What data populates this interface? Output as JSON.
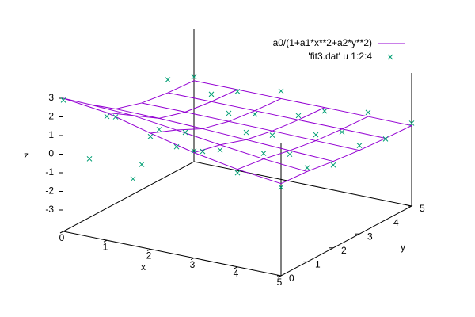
{
  "chart_data": {
    "type": "surface3d",
    "xlabel": "x",
    "ylabel": "y",
    "zlabel": "z",
    "xlim": [
      0,
      5
    ],
    "ylim": [
      0,
      5
    ],
    "zlim": [
      -3,
      3
    ],
    "xticks": [
      0,
      1,
      2,
      3,
      4,
      5
    ],
    "yticks": [
      0,
      1,
      2,
      3,
      4,
      5
    ],
    "zticks": [
      -3,
      -2,
      -1,
      0,
      1,
      2,
      3
    ],
    "legend": "top-right",
    "series": [
      {
        "name": "a0/(1+a1*x**2+a2*y**2)",
        "type": "surface",
        "color": "#9400d3",
        "x": [
          0,
          1,
          2,
          3,
          4,
          5
        ],
        "y": [
          0,
          1,
          2,
          3,
          4,
          5
        ],
        "z": [
          [
            3.0,
            2.7,
            2.08,
            1.51,
            1.09,
            0.8
          ],
          [
            1.92,
            1.8,
            1.5,
            1.18,
            0.9,
            0.7
          ],
          [
            0.93,
            0.9,
            0.82,
            0.71,
            0.6,
            0.5
          ],
          [
            0.5,
            0.49,
            0.46,
            0.43,
            0.38,
            0.34
          ],
          [
            0.3,
            0.3,
            0.29,
            0.27,
            0.26,
            0.24
          ],
          [
            0.2,
            0.2,
            0.19,
            0.19,
            0.18,
            0.17
          ]
        ]
      },
      {
        "name": "'fit3.dat' u 1:2:4",
        "type": "points",
        "color": "#009e73",
        "x": [
          0,
          0,
          0,
          0,
          0,
          0,
          1,
          1,
          1,
          1,
          1,
          1,
          2,
          2,
          2,
          2,
          2,
          2,
          3,
          3,
          3,
          3,
          3,
          3,
          4,
          4,
          4,
          4,
          4,
          4,
          5,
          5,
          5,
          5,
          5,
          5
        ],
        "y": [
          0,
          1,
          2,
          3,
          4,
          5,
          0,
          1,
          2,
          3,
          4,
          5,
          0,
          1,
          2,
          3,
          4,
          5,
          0,
          1,
          2,
          3,
          4,
          5,
          0,
          1,
          2,
          3,
          4,
          5,
          0,
          1,
          2,
          3,
          4,
          5
        ],
        "z": [
          2.9,
          -1.0,
          0.5,
          -2.8,
          1.0,
          0.4,
          2.5,
          -1.6,
          0.3,
          -0.6,
          0.7,
          0.1,
          1.9,
          0.6,
          -0.4,
          0.9,
          0.1,
          0.6,
          1.6,
          0.9,
          1.1,
          0.2,
          0.5,
          0.0,
          0.9,
          1.2,
          0.4,
          0.7,
          0.1,
          0.4,
          0.6,
          0.9,
          0.3,
          0.6,
          0.2,
          0.3
        ]
      }
    ]
  }
}
